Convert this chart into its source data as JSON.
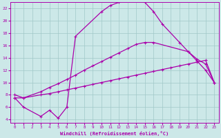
{
  "xlabel": "Windchill (Refroidissement éolien,°C)",
  "background_color": "#cce8e8",
  "grid_color": "#a0c8c8",
  "line_color": "#aa00aa",
  "xlim": [
    -0.5,
    23.5
  ],
  "ylim": [
    3.5,
    23.0
  ],
  "xticks": [
    0,
    1,
    2,
    3,
    4,
    5,
    6,
    7,
    8,
    9,
    10,
    11,
    12,
    13,
    14,
    15,
    16,
    17,
    18,
    19,
    20,
    21,
    22,
    23
  ],
  "yticks": [
    4,
    6,
    8,
    10,
    12,
    14,
    16,
    18,
    20,
    22
  ],
  "line1_x": [
    0,
    1,
    3,
    4,
    5,
    6,
    7,
    8,
    9,
    10,
    11,
    12,
    13,
    14,
    15,
    16,
    17,
    18,
    19,
    20,
    21,
    22,
    23
  ],
  "line1_y": [
    7.5,
    7.5,
    8.0,
    8.2,
    8.5,
    8.8,
    9.1,
    9.4,
    9.7,
    10.0,
    10.3,
    10.6,
    10.9,
    11.2,
    11.5,
    11.8,
    12.1,
    12.4,
    12.7,
    13.0,
    13.3,
    13.6,
    10.0
  ],
  "line2_x": [
    0,
    1,
    3,
    4,
    5,
    6,
    7,
    8,
    9,
    10,
    11,
    12,
    13,
    14,
    15,
    16,
    20,
    21,
    22,
    23
  ],
  "line2_y": [
    8.0,
    7.5,
    8.5,
    9.2,
    9.8,
    10.5,
    11.2,
    12.0,
    12.7,
    13.4,
    14.1,
    14.8,
    15.5,
    16.2,
    16.5,
    16.5,
    15.0,
    13.8,
    13.0,
    10.0
  ],
  "line3_x": [
    0,
    1,
    3,
    4,
    5,
    6,
    7,
    10,
    11,
    12,
    13,
    14,
    15,
    16,
    17,
    19,
    20,
    21,
    22,
    23
  ],
  "line3_y": [
    7.5,
    6.0,
    4.5,
    5.5,
    4.2,
    6.0,
    17.5,
    21.5,
    22.5,
    23.0,
    23.5,
    23.5,
    23.0,
    21.5,
    19.5,
    16.5,
    15.0,
    13.5,
    12.0,
    10.0
  ]
}
